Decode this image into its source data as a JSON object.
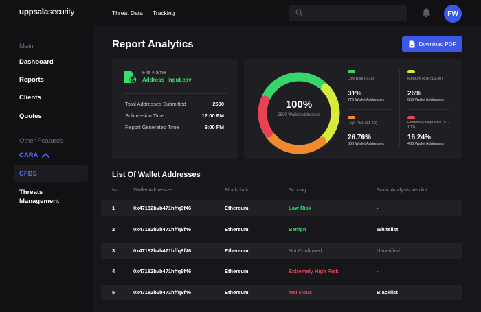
{
  "brand": {
    "bold": "uppsala",
    "light": "security"
  },
  "nav": {
    "threat_data": "Threat Data",
    "tracking": "Tracking"
  },
  "search": {
    "placeholder": ""
  },
  "user": {
    "initials": "FW"
  },
  "sidebar": {
    "section_main": "Main",
    "dashboard": "Dashboard",
    "reports": "Reports",
    "clients": "Clients",
    "quotes": "Quotes",
    "section_other": "Other Features",
    "cara": "CARA",
    "cfds": "CFDS",
    "threats_line1": "Threats",
    "threats_line2": "Management"
  },
  "page": {
    "title": "Report Analytics",
    "download_label": "Download PDF"
  },
  "file": {
    "label": "File Name",
    "name": "Address_Input.csv",
    "stats": [
      {
        "label": "Total Addresses Submitted",
        "value": "2500"
      },
      {
        "label": "Submission Time",
        "value": "12:00 PM"
      },
      {
        "label": "Report Generated Time",
        "value": "6:00 PM"
      }
    ]
  },
  "donut": {
    "percent": "100%",
    "subtitle": "2500 Wallet Addresses",
    "segments": [
      {
        "label": "Low Risk",
        "fraction": 0.31,
        "color": "#37d66a"
      },
      {
        "label": "Medium Risk",
        "fraction": 0.26,
        "color": "#d7ec3a"
      },
      {
        "label": "High Risk",
        "fraction": 0.2676,
        "color": "#f08a2e"
      },
      {
        "label": "Extremely High Risk",
        "fraction": 0.1624,
        "color": "#e84254"
      }
    ]
  },
  "legend": [
    {
      "name": "Low Risk (0-15)",
      "pct": "31%",
      "count": "775 Wallet Addresses",
      "color": "#37d66a"
    },
    {
      "name": "Medium Risk (16-30)",
      "pct": "26%",
      "count": "650 Wallet Addresses",
      "color": "#d7ec3a"
    },
    {
      "name": "High Risk (31-50)",
      "pct": "26.76%",
      "count": "669 Wallet Addresses",
      "color": "#f08a2e"
    },
    {
      "name": "Extremely High Risk (51-100)",
      "pct": "16.24%",
      "count": "406 Wallet Addresses",
      "color": "#e84254"
    }
  ],
  "table": {
    "title": "List Of Wallet Addresses",
    "headers": {
      "no": "No.",
      "address": "Wallet Addresses",
      "chain": "Blockchain",
      "scoring": "Scoring",
      "verdict": "Static Analysis Verdict"
    },
    "rows": [
      {
        "no": "1",
        "address": "0x47182bvb471hffq9f46",
        "chain": "Ethereum",
        "scoring": "Low Risk",
        "score_color": "#37d66a",
        "verdict": "-"
      },
      {
        "no": "2",
        "address": "0x47182bvb471hffq9f46",
        "chain": "Ethereum",
        "scoring": "Benign",
        "score_color": "#37d66a",
        "verdict": "Whitelist"
      },
      {
        "no": "3",
        "address": "0x47182bvb471hffq9f46",
        "chain": "Ethereum",
        "scoring": "Not Confirmed",
        "score_color": "#8c8c93",
        "verdict": "Unverified"
      },
      {
        "no": "4",
        "address": "0x47182bvb471hffq9f46",
        "chain": "Ethereum",
        "scoring": "Extremely High Risk",
        "score_color": "#e84254",
        "verdict": "-"
      },
      {
        "no": "5",
        "address": "0x47182bvb471hffq9f46",
        "chain": "Ethereum",
        "scoring": "Malicious",
        "score_color": "#e84254",
        "verdict": "Blacklist"
      }
    ]
  }
}
